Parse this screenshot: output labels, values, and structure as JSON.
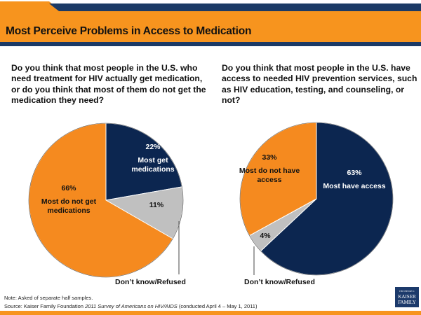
{
  "header": {
    "title": "Most Perceive Problems in Access to Medication",
    "colors": {
      "orange": "#f7941e",
      "navy": "#1b3a66"
    }
  },
  "questions": {
    "left": "Do you think that most people in the U.S. who need treatment for HIV actually get medication, or do you think that most of them do not get the medication they need?",
    "right": "Do you think that most people in the U.S. have access to needed HIV prevention services, such as HIV education, testing, and counseling, or not?"
  },
  "chart_data": [
    {
      "type": "pie",
      "title": "Do you think that most people in the U.S. who need treatment for HIV actually get medication, or do you think that most of them do not get the medication they need?",
      "slices": [
        {
          "label": "Most get medications",
          "value": 22,
          "value_label": "22%",
          "color": "#0c2650",
          "text_color": "#ffffff",
          "label_lines": [
            "Most get",
            "medications"
          ]
        },
        {
          "label": "Don't know/Refused",
          "value": 11,
          "value_label": "11%",
          "color": "#c0c0c0",
          "text_color": "#111111",
          "label_lines": []
        },
        {
          "label": "Most do not get medications",
          "value": 66,
          "value_label": "66%",
          "color": "#f58a1f",
          "text_color": "#111111",
          "label_lines": [
            "Most do not get",
            "medications"
          ]
        }
      ],
      "callout": "Don’t know/Refused"
    },
    {
      "type": "pie",
      "title": "Do you think that most people in the U.S. have access to needed HIV prevention services, such as HIV education, testing, and counseling, or not?",
      "slices": [
        {
          "label": "Most have access",
          "value": 63,
          "value_label": "63%",
          "color": "#0c2650",
          "text_color": "#ffffff",
          "label_lines": [
            "Most have access"
          ]
        },
        {
          "label": "Don't know/Refused",
          "value": 4,
          "value_label": "4%",
          "color": "#c0c0c0",
          "text_color": "#111111",
          "label_lines": []
        },
        {
          "label": "Most do not have access",
          "value": 33,
          "value_label": "33%",
          "color": "#f58a1f",
          "text_color": "#111111",
          "label_lines": [
            "Most do not have",
            "access"
          ]
        }
      ],
      "callout": "Don’t know/Refused"
    }
  ],
  "footer": {
    "note": "Note: Asked of separate half samples.",
    "source_prefix": "Source: Kaiser Family Foundation ",
    "source_italic": "2011 Survey of Americans on HIV/AIDS",
    "source_suffix": " (conducted April 4 – May 1, 2011)",
    "logo_top": "THE HENRY J.",
    "logo_line1": "KAISER",
    "logo_line2": "FAMILY",
    "logo_bottom": "FOUNDATION"
  }
}
